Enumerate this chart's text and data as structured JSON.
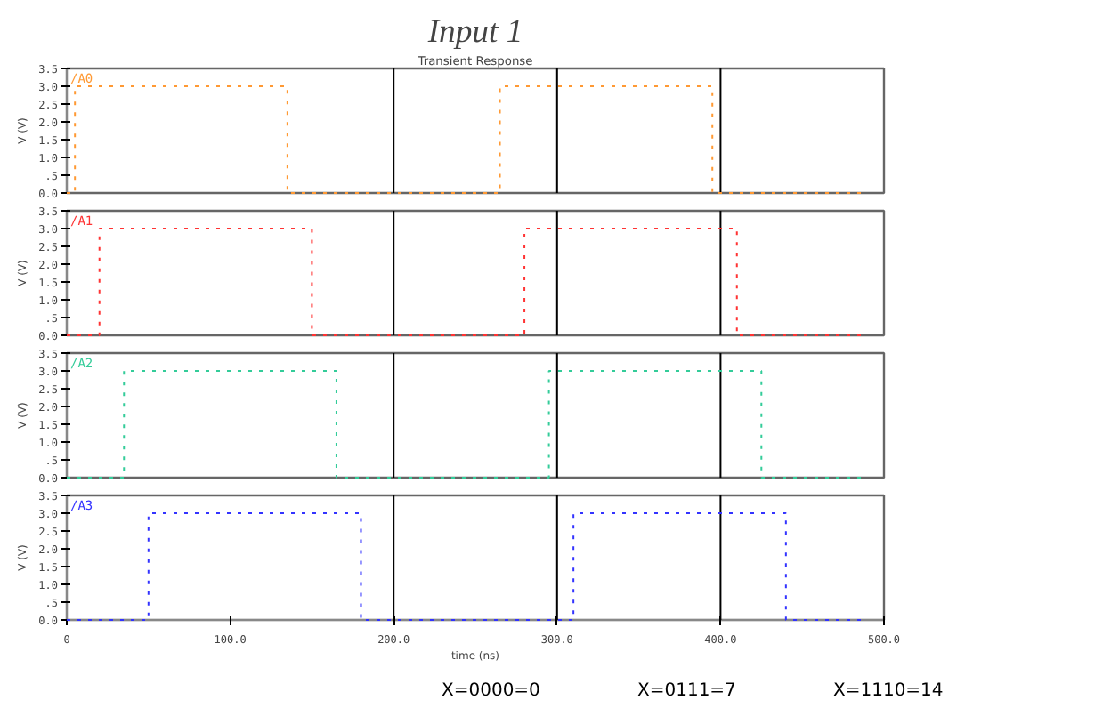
{
  "chart_data": [
    {
      "type": "step",
      "title": "Input 1",
      "subtitle": "Transient Response",
      "ylabel": "V (V)",
      "xlim": [
        0,
        500
      ],
      "ylim": [
        0,
        3.5
      ],
      "yticks": [
        {
          "value": 0,
          "label": "0.0"
        },
        {
          "value": 0.5,
          "label": ".5"
        },
        {
          "value": 1,
          "label": "1.0"
        },
        {
          "value": 1.5,
          "label": "1.5"
        },
        {
          "value": 2,
          "label": "2.0"
        },
        {
          "value": 2.5,
          "label": "2.5"
        },
        {
          "value": 3,
          "label": "3.0"
        },
        {
          "value": 3.5,
          "label": "3.5"
        }
      ],
      "tick_labels": "y",
      "grid": false,
      "line_style": "dotted",
      "series": [
        {
          "name": "/A0",
          "color": "#ff9933",
          "x": [
            0,
            5,
            135,
            265,
            395,
            490
          ],
          "values": [
            0,
            3,
            0,
            3,
            0,
            0
          ]
        }
      ],
      "ref_lines": [
        {
          "axis": "x",
          "value": 200,
          "color": "#000000"
        },
        {
          "axis": "x",
          "value": 300,
          "color": "#000000"
        },
        {
          "axis": "x",
          "value": 400,
          "color": "#000000"
        }
      ]
    },
    {
      "type": "step",
      "ylabel": "V (V)",
      "xlim": [
        0,
        500
      ],
      "ylim": [
        0,
        3.5
      ],
      "yticks": [
        {
          "value": 0,
          "label": "0.0"
        },
        {
          "value": 0.5,
          "label": ".5"
        },
        {
          "value": 1,
          "label": "1.0"
        },
        {
          "value": 1.5,
          "label": "1.5"
        },
        {
          "value": 2,
          "label": "2.0"
        },
        {
          "value": 2.5,
          "label": "2.5"
        },
        {
          "value": 3,
          "label": "3.0"
        },
        {
          "value": 3.5,
          "label": "3.5"
        }
      ],
      "tick_labels": "y",
      "grid": false,
      "line_style": "dotted",
      "series": [
        {
          "name": "/A1",
          "color": "#ff3333",
          "x": [
            0,
            20,
            150,
            280,
            410,
            490
          ],
          "values": [
            0,
            3,
            0,
            3,
            0,
            0
          ]
        }
      ],
      "ref_lines": [
        {
          "axis": "x",
          "value": 200,
          "color": "#000000"
        },
        {
          "axis": "x",
          "value": 300,
          "color": "#000000"
        },
        {
          "axis": "x",
          "value": 400,
          "color": "#000000"
        }
      ]
    },
    {
      "type": "step",
      "ylabel": "V (V)",
      "xlim": [
        0,
        500
      ],
      "ylim": [
        0,
        3.5
      ],
      "yticks": [
        {
          "value": 0,
          "label": "0.0"
        },
        {
          "value": 0.5,
          "label": ".5"
        },
        {
          "value": 1,
          "label": "1.0"
        },
        {
          "value": 1.5,
          "label": "1.5"
        },
        {
          "value": 2,
          "label": "2.0"
        },
        {
          "value": 2.5,
          "label": "2.5"
        },
        {
          "value": 3,
          "label": "3.0"
        },
        {
          "value": 3.5,
          "label": "3.5"
        }
      ],
      "tick_labels": "y",
      "grid": false,
      "line_style": "dotted",
      "series": [
        {
          "name": "/A2",
          "color": "#33cc99",
          "x": [
            0,
            35,
            165,
            295,
            425,
            490
          ],
          "values": [
            0,
            3,
            0,
            3,
            0,
            0
          ]
        }
      ],
      "ref_lines": [
        {
          "axis": "x",
          "value": 200,
          "color": "#000000"
        },
        {
          "axis": "x",
          "value": 300,
          "color": "#000000"
        },
        {
          "axis": "x",
          "value": 400,
          "color": "#000000"
        }
      ]
    },
    {
      "type": "step",
      "ylabel": "V (V)",
      "xlabel": "time (ns)",
      "xlim": [
        0,
        500
      ],
      "ylim": [
        0,
        3.5
      ],
      "yticks": [
        {
          "value": 0,
          "label": "0.0"
        },
        {
          "value": 0.5,
          "label": ".5"
        },
        {
          "value": 1,
          "label": "1.0"
        },
        {
          "value": 1.5,
          "label": "1.5"
        },
        {
          "value": 2,
          "label": "2.0"
        },
        {
          "value": 2.5,
          "label": "2.5"
        },
        {
          "value": 3,
          "label": "3.0"
        },
        {
          "value": 3.5,
          "label": "3.5"
        }
      ],
      "annotations": [
        "X=0000=0",
        "X=0111=7",
        "X=1110=14"
      ],
      "xticks": [
        {
          "value": 0,
          "label": "0"
        },
        {
          "value": 100,
          "label": "100.0"
        },
        {
          "value": 200,
          "label": "200.0"
        },
        {
          "value": 300,
          "label": "300.0"
        },
        {
          "value": 400,
          "label": "400.0"
        },
        {
          "value": 500,
          "label": "500.0"
        }
      ],
      "grid": false,
      "line_style": "dotted",
      "series": [
        {
          "name": "/A3",
          "color": "#3333ff",
          "x": [
            0,
            50,
            180,
            310,
            440,
            490
          ],
          "values": [
            0,
            3,
            0,
            3,
            0,
            0
          ]
        }
      ],
      "ref_lines": [
        {
          "axis": "x",
          "value": 200,
          "color": "#000000"
        },
        {
          "axis": "x",
          "value": 300,
          "color": "#000000"
        },
        {
          "axis": "x",
          "value": 400,
          "color": "#000000"
        }
      ]
    }
  ]
}
